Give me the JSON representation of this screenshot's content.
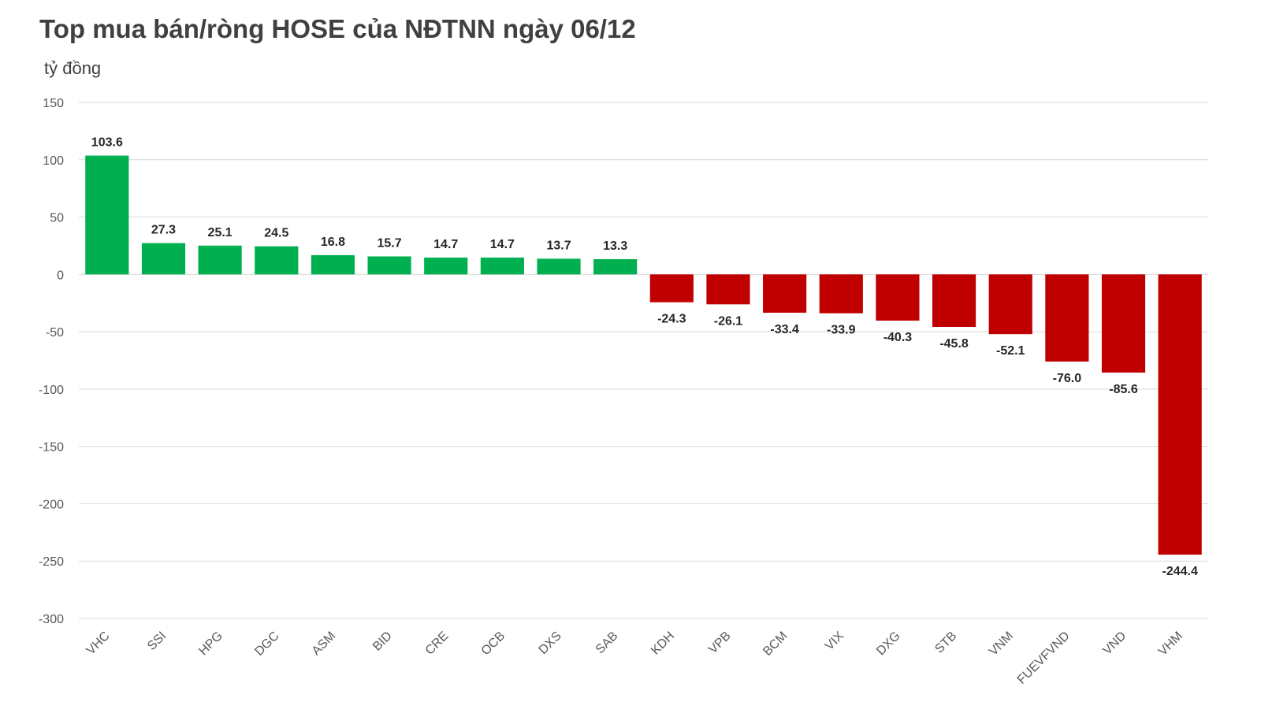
{
  "title": "Top mua bán/ròng HOSE của NĐTNN ngày 06/12",
  "unit_label": "tỷ đồng",
  "chart_data": {
    "type": "bar",
    "title": "Top mua bán/ròng HOSE của NĐTNN ngày 06/12",
    "ylabel": "tỷ đồng",
    "xlabel": "",
    "ylim": [
      -300,
      150
    ],
    "yticks": [
      150,
      100,
      50,
      0,
      -50,
      -100,
      -150,
      -200,
      -250,
      -300
    ],
    "grid": true,
    "legend": "none",
    "categories": [
      "VHC",
      "SSI",
      "HPG",
      "DGC",
      "ASM",
      "BID",
      "CRE",
      "OCB",
      "DXS",
      "SAB",
      "KDH",
      "VPB",
      "BCM",
      "VIX",
      "DXG",
      "STB",
      "VNM",
      "FUEVFVND",
      "VND",
      "VHM"
    ],
    "values": [
      103.6,
      27.3,
      25.1,
      24.5,
      16.8,
      15.7,
      14.7,
      14.7,
      13.7,
      13.3,
      -24.3,
      -26.1,
      -33.4,
      -33.9,
      -40.3,
      -45.8,
      -52.1,
      -76.0,
      -85.6,
      -244.4
    ],
    "data_labels": [
      "103.6",
      "27.3",
      "25.1",
      "24.5",
      "16.8",
      "15.7",
      "14.7",
      "14.7",
      "13.7",
      "13.3",
      "-24.3",
      "-26.1",
      "-33.4",
      "-33.9",
      "-40.3",
      "-45.8",
      "-52.1",
      "-76.0",
      "-85.6",
      "-244.4"
    ],
    "colors": {
      "positive": "#00B050",
      "negative": "#C00000",
      "grid": "#D9D9D9"
    }
  }
}
